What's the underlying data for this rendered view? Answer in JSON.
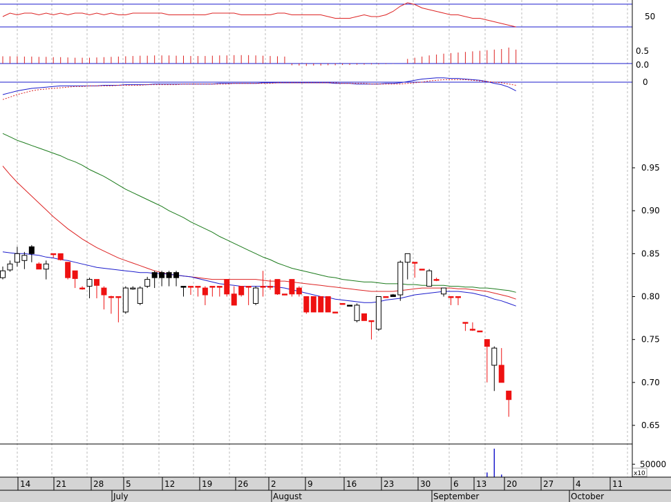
{
  "chart_data": {
    "type": "candlestick",
    "price_axis": {
      "ticks": [
        0.95,
        0.9,
        0.85,
        0.8,
        0.75,
        0.7,
        0.65
      ],
      "labels": [
        "0.95",
        "0.90",
        "0.85",
        "0.80",
        "0.75",
        "0.70",
        "0.65"
      ],
      "ylim": [
        0.635,
        1.0
      ]
    },
    "volume_axis": {
      "ticks": [
        50000
      ],
      "labels": [
        "50000"
      ],
      "multiplier_label": "x10"
    },
    "panel_labels": {
      "top": "50",
      "histogram_pos": "0.5",
      "histogram_zero": "0.0",
      "macd_zero": "0"
    },
    "x_axis": {
      "day_labels": [
        "14",
        "21",
        "28",
        "5",
        "12",
        "19",
        "26",
        "2",
        "9",
        "16",
        "23",
        "30",
        "6",
        "13",
        "20",
        "27",
        "4",
        "11"
      ],
      "month_labels": [
        "July",
        "August",
        "September",
        "October"
      ]
    },
    "candles": [
      {
        "o": 0.822,
        "h": 0.835,
        "l": 0.82,
        "c": 0.83,
        "color": "white"
      },
      {
        "o": 0.831,
        "h": 0.842,
        "l": 0.829,
        "c": 0.838,
        "color": "white"
      },
      {
        "o": 0.84,
        "h": 0.858,
        "l": 0.835,
        "c": 0.85,
        "color": "white"
      },
      {
        "o": 0.842,
        "h": 0.852,
        "l": 0.832,
        "c": 0.848,
        "color": "white"
      },
      {
        "o": 0.85,
        "h": 0.86,
        "l": 0.84,
        "c": 0.858,
        "color": "black"
      },
      {
        "o": 0.838,
        "h": 0.84,
        "l": 0.832,
        "c": 0.832,
        "color": "red"
      },
      {
        "o": 0.838,
        "h": 0.842,
        "l": 0.82,
        "c": 0.832,
        "color": "white"
      },
      {
        "o": 0.85,
        "h": 0.85,
        "l": 0.845,
        "c": 0.85,
        "color": "red"
      },
      {
        "o": 0.85,
        "h": 0.85,
        "l": 0.842,
        "c": 0.843,
        "color": "red"
      },
      {
        "o": 0.84,
        "h": 0.84,
        "l": 0.82,
        "c": 0.822,
        "color": "red"
      },
      {
        "o": 0.83,
        "h": 0.83,
        "l": 0.81,
        "c": 0.821,
        "color": "red"
      },
      {
        "o": 0.81,
        "h": 0.812,
        "l": 0.808,
        "c": 0.81,
        "color": "red"
      },
      {
        "o": 0.812,
        "h": 0.822,
        "l": 0.798,
        "c": 0.82,
        "color": "white"
      },
      {
        "o": 0.82,
        "h": 0.82,
        "l": 0.798,
        "c": 0.813,
        "color": "red"
      },
      {
        "o": 0.81,
        "h": 0.812,
        "l": 0.785,
        "c": 0.802,
        "color": "red"
      },
      {
        "o": 0.8,
        "h": 0.801,
        "l": 0.78,
        "c": 0.8,
        "color": "red"
      },
      {
        "o": 0.8,
        "h": 0.8,
        "l": 0.77,
        "c": 0.8,
        "color": "red"
      },
      {
        "o": 0.782,
        "h": 0.812,
        "l": 0.78,
        "c": 0.81,
        "color": "white"
      },
      {
        "o": 0.81,
        "h": 0.812,
        "l": 0.808,
        "c": 0.81,
        "color": "white"
      },
      {
        "o": 0.792,
        "h": 0.812,
        "l": 0.79,
        "c": 0.81,
        "color": "white"
      },
      {
        "o": 0.812,
        "h": 0.823,
        "l": 0.81,
        "c": 0.82,
        "color": "white"
      },
      {
        "o": 0.822,
        "h": 0.83,
        "l": 0.81,
        "c": 0.828,
        "color": "black"
      },
      {
        "o": 0.822,
        "h": 0.83,
        "l": 0.812,
        "c": 0.828,
        "color": "black"
      },
      {
        "o": 0.822,
        "h": 0.83,
        "l": 0.812,
        "c": 0.828,
        "color": "black"
      },
      {
        "o": 0.822,
        "h": 0.83,
        "l": 0.812,
        "c": 0.828,
        "color": "black"
      },
      {
        "o": 0.812,
        "h": 0.812,
        "l": 0.8,
        "c": 0.812,
        "color": "black"
      },
      {
        "o": 0.812,
        "h": 0.812,
        "l": 0.802,
        "c": 0.812,
        "color": "red"
      },
      {
        "o": 0.812,
        "h": 0.812,
        "l": 0.8,
        "c": 0.812,
        "color": "red"
      },
      {
        "o": 0.81,
        "h": 0.812,
        "l": 0.79,
        "c": 0.802,
        "color": "red"
      },
      {
        "o": 0.812,
        "h": 0.812,
        "l": 0.8,
        "c": 0.812,
        "color": "red"
      },
      {
        "o": 0.812,
        "h": 0.812,
        "l": 0.8,
        "c": 0.812,
        "color": "red"
      },
      {
        "o": 0.82,
        "h": 0.82,
        "l": 0.8,
        "c": 0.803,
        "color": "red"
      },
      {
        "o": 0.803,
        "h": 0.812,
        "l": 0.79,
        "c": 0.79,
        "color": "red"
      },
      {
        "o": 0.812,
        "h": 0.812,
        "l": 0.8,
        "c": 0.802,
        "color": "red"
      },
      {
        "o": 0.812,
        "h": 0.812,
        "l": 0.79,
        "c": 0.812,
        "color": "red"
      },
      {
        "o": 0.792,
        "h": 0.812,
        "l": 0.79,
        "c": 0.81,
        "color": "white"
      },
      {
        "o": 0.812,
        "h": 0.83,
        "l": 0.8,
        "c": 0.812,
        "color": "red"
      },
      {
        "o": 0.812,
        "h": 0.82,
        "l": 0.808,
        "c": 0.812,
        "color": "red"
      },
      {
        "o": 0.82,
        "h": 0.82,
        "l": 0.802,
        "c": 0.803,
        "color": "red"
      },
      {
        "o": 0.803,
        "h": 0.803,
        "l": 0.802,
        "c": 0.803,
        "color": "red"
      },
      {
        "o": 0.82,
        "h": 0.82,
        "l": 0.8,
        "c": 0.803,
        "color": "red"
      },
      {
        "o": 0.81,
        "h": 0.812,
        "l": 0.8,
        "c": 0.803,
        "color": "red"
      },
      {
        "o": 0.8,
        "h": 0.8,
        "l": 0.78,
        "c": 0.782,
        "color": "red"
      },
      {
        "o": 0.8,
        "h": 0.8,
        "l": 0.782,
        "c": 0.782,
        "color": "red"
      },
      {
        "o": 0.8,
        "h": 0.8,
        "l": 0.782,
        "c": 0.782,
        "color": "red"
      },
      {
        "o": 0.8,
        "h": 0.8,
        "l": 0.782,
        "c": 0.782,
        "color": "red"
      },
      {
        "o": 0.782,
        "h": 0.782,
        "l": 0.781,
        "c": 0.782,
        "color": "red"
      },
      {
        "o": 0.792,
        "h": 0.792,
        "l": 0.791,
        "c": 0.792,
        "color": "red"
      },
      {
        "o": 0.79,
        "h": 0.79,
        "l": 0.789,
        "c": 0.79,
        "color": "black"
      },
      {
        "o": 0.772,
        "h": 0.792,
        "l": 0.77,
        "c": 0.79,
        "color": "white"
      },
      {
        "o": 0.78,
        "h": 0.78,
        "l": 0.772,
        "c": 0.772,
        "color": "red"
      },
      {
        "o": 0.772,
        "h": 0.772,
        "l": 0.75,
        "c": 0.772,
        "color": "red"
      },
      {
        "o": 0.762,
        "h": 0.8,
        "l": 0.76,
        "c": 0.8,
        "color": "white"
      },
      {
        "o": 0.8,
        "h": 0.8,
        "l": 0.799,
        "c": 0.8,
        "color": "red"
      },
      {
        "o": 0.8,
        "h": 0.803,
        "l": 0.8,
        "c": 0.802,
        "color": "black"
      },
      {
        "o": 0.802,
        "h": 0.842,
        "l": 0.795,
        "c": 0.84,
        "color": "white"
      },
      {
        "o": 0.84,
        "h": 0.85,
        "l": 0.82,
        "c": 0.85,
        "color": "white"
      },
      {
        "o": 0.84,
        "h": 0.84,
        "l": 0.822,
        "c": 0.84,
        "color": "red"
      },
      {
        "o": 0.832,
        "h": 0.832,
        "l": 0.831,
        "c": 0.832,
        "color": "red"
      },
      {
        "o": 0.83,
        "h": 0.832,
        "l": 0.812,
        "c": 0.812,
        "color": "white"
      },
      {
        "o": 0.82,
        "h": 0.822,
        "l": 0.818,
        "c": 0.82,
        "color": "red"
      },
      {
        "o": 0.803,
        "h": 0.81,
        "l": 0.8,
        "c": 0.81,
        "color": "white"
      },
      {
        "o": 0.8,
        "h": 0.8,
        "l": 0.79,
        "c": 0.8,
        "color": "red"
      },
      {
        "o": 0.8,
        "h": 0.8,
        "l": 0.79,
        "c": 0.8,
        "color": "red"
      },
      {
        "o": 0.77,
        "h": 0.77,
        "l": 0.76,
        "c": 0.77,
        "color": "red"
      },
      {
        "o": 0.762,
        "h": 0.77,
        "l": 0.76,
        "c": 0.762,
        "color": "red"
      },
      {
        "o": 0.76,
        "h": 0.76,
        "l": 0.759,
        "c": 0.76,
        "color": "red"
      },
      {
        "o": 0.75,
        "h": 0.75,
        "l": 0.7,
        "c": 0.742,
        "color": "red"
      },
      {
        "o": 0.72,
        "h": 0.742,
        "l": 0.69,
        "c": 0.74,
        "color": "white"
      },
      {
        "o": 0.72,
        "h": 0.74,
        "l": 0.7,
        "c": 0.7,
        "color": "red"
      },
      {
        "o": 0.69,
        "h": 0.69,
        "l": 0.66,
        "c": 0.68,
        "color": "red"
      }
    ],
    "ma_blue": [
      0.852,
      0.851,
      0.85,
      0.85,
      0.849,
      0.848,
      0.846,
      0.845,
      0.843,
      0.842,
      0.84,
      0.838,
      0.836,
      0.834,
      0.833,
      0.832,
      0.831,
      0.83,
      0.829,
      0.828,
      0.828,
      0.827,
      0.827,
      0.826,
      0.825,
      0.824,
      0.823,
      0.821,
      0.819,
      0.817,
      0.815,
      0.814,
      0.813,
      0.812,
      0.812,
      0.812,
      0.812,
      0.812,
      0.811,
      0.81,
      0.808,
      0.806,
      0.804,
      0.802,
      0.8,
      0.799,
      0.797,
      0.796,
      0.795,
      0.794,
      0.793,
      0.793,
      0.794,
      0.796,
      0.797,
      0.798,
      0.8,
      0.802,
      0.803,
      0.804,
      0.805,
      0.806,
      0.806,
      0.806,
      0.805,
      0.804,
      0.802,
      0.8,
      0.797,
      0.795,
      0.792,
      0.789
    ],
    "ma_red": [
      0.952,
      0.942,
      0.933,
      0.925,
      0.917,
      0.909,
      0.901,
      0.893,
      0.886,
      0.879,
      0.873,
      0.867,
      0.862,
      0.857,
      0.853,
      0.849,
      0.845,
      0.842,
      0.839,
      0.836,
      0.833,
      0.83,
      0.828,
      0.826,
      0.825,
      0.824,
      0.823,
      0.822,
      0.821,
      0.82,
      0.82,
      0.82,
      0.82,
      0.82,
      0.82,
      0.82,
      0.819,
      0.818,
      0.818,
      0.818,
      0.817,
      0.816,
      0.815,
      0.814,
      0.813,
      0.812,
      0.811,
      0.81,
      0.809,
      0.808,
      0.807,
      0.806,
      0.806,
      0.806,
      0.806,
      0.807,
      0.808,
      0.809,
      0.81,
      0.81,
      0.81,
      0.81,
      0.81,
      0.809,
      0.809,
      0.808,
      0.807,
      0.806,
      0.804,
      0.802,
      0.8,
      0.797
    ],
    "ma_green": [
      0.99,
      0.986,
      0.982,
      0.979,
      0.976,
      0.973,
      0.97,
      0.967,
      0.964,
      0.96,
      0.957,
      0.953,
      0.948,
      0.944,
      0.94,
      0.935,
      0.93,
      0.925,
      0.921,
      0.917,
      0.913,
      0.909,
      0.905,
      0.9,
      0.896,
      0.892,
      0.887,
      0.883,
      0.879,
      0.875,
      0.87,
      0.866,
      0.862,
      0.858,
      0.854,
      0.85,
      0.846,
      0.843,
      0.839,
      0.836,
      0.833,
      0.831,
      0.829,
      0.827,
      0.825,
      0.823,
      0.822,
      0.82,
      0.819,
      0.818,
      0.817,
      0.817,
      0.816,
      0.815,
      0.815,
      0.815,
      0.814,
      0.814,
      0.813,
      0.813,
      0.813,
      0.813,
      0.812,
      0.812,
      0.811,
      0.811,
      0.81,
      0.81,
      0.809,
      0.808,
      0.807,
      0.805
    ],
    "volumes": [
      0,
      0,
      0,
      0,
      0,
      0,
      0,
      0,
      0,
      0,
      0,
      0,
      0,
      0,
      0,
      0,
      0,
      0,
      0,
      0,
      0,
      0,
      0,
      0,
      0,
      0,
      0,
      0,
      0,
      0,
      0,
      0,
      0,
      0,
      0,
      0,
      0,
      0,
      0,
      0,
      0,
      0,
      0,
      0,
      0,
      0,
      0,
      0,
      0,
      0,
      0,
      0,
      0,
      0,
      0,
      0,
      0,
      0,
      0,
      0,
      0,
      0,
      0,
      0,
      0,
      0,
      0,
      18000,
      110000,
      10000,
      0,
      0
    ],
    "indicator_top": [
      48,
      50,
      49,
      50,
      50,
      49,
      50,
      49,
      50,
      49,
      50,
      50,
      49,
      50,
      49,
      50,
      49,
      49,
      50,
      50,
      50,
      50,
      50,
      49,
      49,
      49,
      49,
      49,
      49,
      50,
      50,
      50,
      50,
      49,
      49,
      49,
      49,
      49,
      50,
      50,
      49,
      49,
      49,
      49,
      49,
      48,
      47,
      47,
      47,
      48,
      49,
      48,
      48,
      49,
      51,
      54,
      56,
      55,
      53,
      52,
      51,
      50,
      49,
      49,
      48,
      47,
      47,
      46,
      45,
      44,
      43,
      42
    ],
    "histogram": [
      0.25,
      0.25,
      0.25,
      0.24,
      0.24,
      0.23,
      0.23,
      0.22,
      0.22,
      0.21,
      0.2,
      0.2,
      0.2,
      0.21,
      0.22,
      0.23,
      0.24,
      0.25,
      0.26,
      0.27,
      0.27,
      0.28,
      0.28,
      0.28,
      0.27,
      0.27,
      0.26,
      0.26,
      0.26,
      0.27,
      0.28,
      0.28,
      0.29,
      0.29,
      0.29,
      0.28,
      0.27,
      0.26,
      0.25,
      0.24,
      -0.06,
      -0.07,
      -0.08,
      -0.07,
      -0.07,
      -0.06,
      -0.06,
      -0.05,
      -0.05,
      -0.04,
      -0.04,
      -0.03,
      -0.03,
      -0.02,
      -0.01,
      0.0,
      0.16,
      0.2,
      0.24,
      0.28,
      0.31,
      0.34,
      0.36,
      0.38,
      0.4,
      0.42,
      0.44,
      0.46,
      0.48,
      0.5,
      0.55,
      0.48
    ],
    "macd_line": [
      -0.02,
      -0.017,
      -0.014,
      -0.012,
      -0.01,
      -0.009,
      -0.008,
      -0.007,
      -0.006,
      -0.006,
      -0.006,
      -0.006,
      -0.006,
      -0.006,
      -0.005,
      -0.005,
      -0.005,
      -0.004,
      -0.004,
      -0.004,
      -0.004,
      -0.003,
      -0.003,
      -0.003,
      -0.003,
      -0.003,
      -0.003,
      -0.003,
      -0.003,
      -0.003,
      -0.002,
      -0.002,
      -0.002,
      -0.002,
      -0.002,
      -0.002,
      -0.001,
      -0.001,
      -0.001,
      -0.001,
      -0.001,
      -0.001,
      -0.001,
      -0.001,
      -0.001,
      -0.001,
      -0.002,
      -0.002,
      -0.002,
      -0.003,
      -0.003,
      -0.003,
      -0.003,
      -0.002,
      -0.002,
      -0.001,
      0.001,
      0.003,
      0.005,
      0.006,
      0.007,
      0.007,
      0.006,
      0.006,
      0.005,
      0.004,
      0.003,
      0.001,
      -0.002,
      -0.004,
      -0.008,
      -0.014
    ],
    "macd_signal": [
      -0.028,
      -0.024,
      -0.02,
      -0.017,
      -0.014,
      -0.012,
      -0.011,
      -0.01,
      -0.009,
      -0.008,
      -0.007,
      -0.007,
      -0.006,
      -0.006,
      -0.006,
      -0.006,
      -0.005,
      -0.005,
      -0.005,
      -0.005,
      -0.004,
      -0.004,
      -0.004,
      -0.004,
      -0.004,
      -0.003,
      -0.003,
      -0.003,
      -0.003,
      -0.003,
      -0.003,
      -0.003,
      -0.002,
      -0.002,
      -0.002,
      -0.002,
      -0.002,
      -0.002,
      -0.001,
      -0.001,
      -0.001,
      -0.001,
      -0.001,
      -0.001,
      -0.001,
      -0.001,
      -0.001,
      -0.002,
      -0.002,
      -0.002,
      -0.002,
      -0.003,
      -0.003,
      -0.003,
      -0.003,
      -0.003,
      -0.002,
      -0.001,
      0.0,
      0.002,
      0.003,
      0.004,
      0.004,
      0.004,
      0.004,
      0.003,
      0.002,
      0.001,
      0.0,
      -0.001,
      -0.003,
      -0.005
    ]
  },
  "colors": {
    "up": "#ffffff",
    "down_red": "#ee1111",
    "down_black": "#000000",
    "ma_blue": "#1a1acc",
    "ma_red": "#dd2222",
    "ma_green": "#1a7a1a",
    "grid": "#bbbbbb",
    "panel_line": "#1a1acc"
  }
}
